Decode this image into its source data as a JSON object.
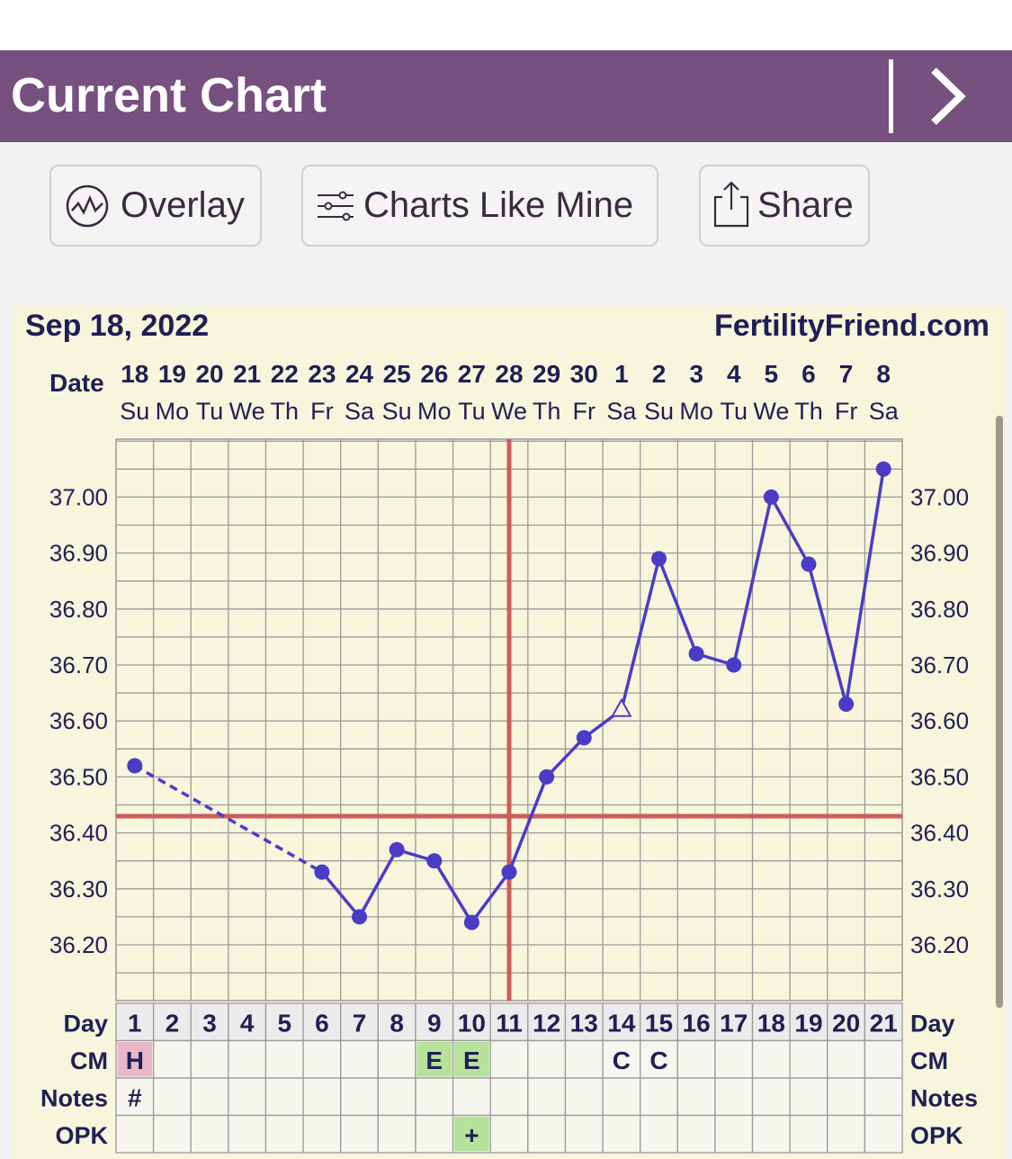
{
  "header": {
    "title": "Current Chart",
    "next_icon": "chevron-right-icon"
  },
  "toolbar": {
    "overlay_label": "Overlay",
    "overlay_icon": "overlay-wave-icon",
    "charts_like_mine_label": "Charts Like Mine",
    "charts_like_mine_icon": "sliders-icon",
    "share_label": "Share",
    "share_icon": "share-icon"
  },
  "chart_data": {
    "type": "line",
    "title": "Sep 18, 2022",
    "brand": "FertilityFriend.com",
    "date_row_label": "Date",
    "dates": [
      "18",
      "19",
      "20",
      "21",
      "22",
      "23",
      "24",
      "25",
      "26",
      "27",
      "28",
      "29",
      "30",
      "1",
      "2",
      "3",
      "4",
      "5",
      "6",
      "7",
      "8"
    ],
    "weekdays": [
      "Su",
      "Mo",
      "Tu",
      "We",
      "Th",
      "Fr",
      "Sa",
      "Su",
      "Mo",
      "Tu",
      "We",
      "Th",
      "Fr",
      "Sa",
      "Su",
      "Mo",
      "Tu",
      "We",
      "Th",
      "Fr",
      "Sa"
    ],
    "days": [
      1,
      2,
      3,
      4,
      5,
      6,
      7,
      8,
      9,
      10,
      11,
      12,
      13,
      14,
      15,
      16,
      17,
      18,
      19,
      20,
      21
    ],
    "y_ticks": [
      "36.20",
      "36.30",
      "36.40",
      "36.50",
      "36.60",
      "36.70",
      "36.80",
      "36.90",
      "37.00"
    ],
    "ylim": [
      36.1,
      37.1
    ],
    "series": [
      {
        "values": [
          36.52,
          null,
          null,
          null,
          null,
          36.33,
          36.25,
          36.37,
          36.35,
          36.24,
          36.33,
          36.5,
          36.57,
          36.62,
          36.89,
          36.72,
          36.7,
          37.0,
          36.88,
          36.63,
          37.05
        ],
        "dashed_from_day": 1,
        "dashed_to_day": 6,
        "open_marker_day": 14,
        "color": "#4a3cc6"
      }
    ],
    "coverline": 36.43,
    "ovulation_day": 11,
    "line_color": "#cd5c5c",
    "grid": true,
    "rows": [
      {
        "label": "Day"
      },
      {
        "label": "CM",
        "entries": [
          {
            "day": 1,
            "text": "H",
            "bg": "#e9b6c7"
          },
          {
            "day": 9,
            "text": "E",
            "bg": "#b7e29b"
          },
          {
            "day": 10,
            "text": "E",
            "bg": "#b7e29b"
          },
          {
            "day": 14,
            "text": "C"
          },
          {
            "day": 15,
            "text": "C"
          }
        ]
      },
      {
        "label": "Notes",
        "entries": [
          {
            "day": 1,
            "text": "#"
          }
        ]
      },
      {
        "label": "OPK",
        "entries": [
          {
            "day": 10,
            "text": "+",
            "bg": "#b7e29b"
          }
        ]
      }
    ]
  }
}
